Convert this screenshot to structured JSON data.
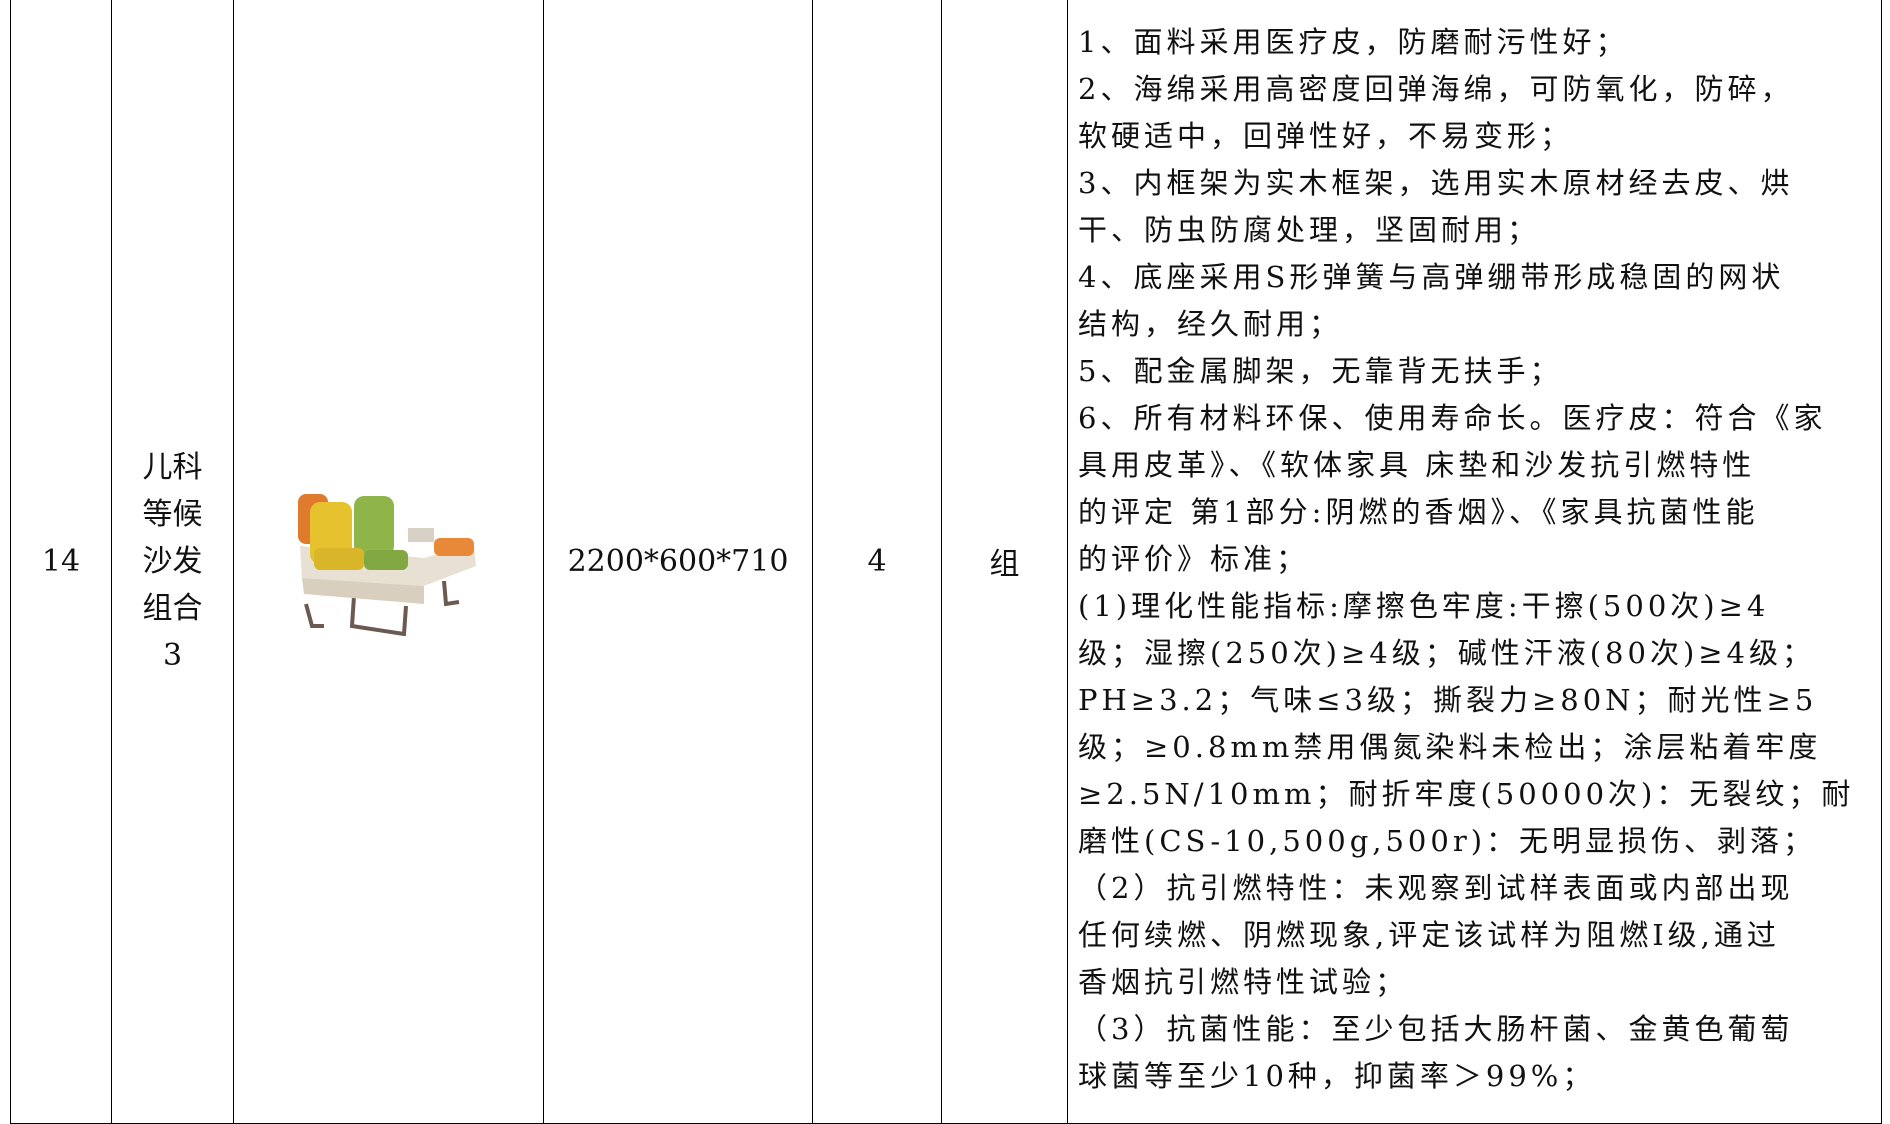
{
  "table": {
    "rows": [
      [
        "14",
        "儿科等候沙发组合3",
        "",
        "2200*600*710",
        "4",
        "组",
        [
          "1、面料采用医疗皮，防磨耐污性好；",
          "2、海绵采用高密度回弹海绵，可防氧化，防碎，",
          "软硬适中，回弹性好，不易变形；",
          "3、内框架为实木框架，选用实木原材经去皮、烘",
          "干、防虫防腐处理，坚固耐用；",
          "4、底座采用S形弹簧与高弹绷带形成稳固的网状",
          "结构，经久耐用；",
          "5、配金属脚架，无靠背无扶手；",
          "6、所有材料环保、使用寿命长。医疗皮：符合《家",
          "具用皮革》、《软体家具 床垫和沙发抗引燃特性",
          "的评定 第1部分:阴燃的香烟》、《家具抗菌性能",
          "的评价》标准；",
          "(1)理化性能指标:摩擦色牢度:干擦(500次)≥4",
          "级；湿擦(250次)≥4级；碱性汗液(80次)≥4级；",
          "PH≥3.2；气味≤3级；撕裂力≥80N；耐光性≥5",
          "级；≥0.8mm禁用偶氮染料未检出；涂层粘着牢度",
          "≥2.5N/10mm；耐折牢度(50000次)：无裂纹；耐",
          "磨性(CS-10,500g,500r)：无明显损伤、剥落；",
          "（2）抗引燃特性：未观察到试样表面或内部出现",
          "任何续燃、阴燃现象,评定该试样为阻燃Ⅰ级,通过",
          "香烟抗引燃特性试验；",
          "（3）抗菌性能：至少包括大肠杆菌、金黄色葡萄",
          "球菌等至少10种，抑菌率＞99%；"
        ]
      ]
    ]
  }
}
